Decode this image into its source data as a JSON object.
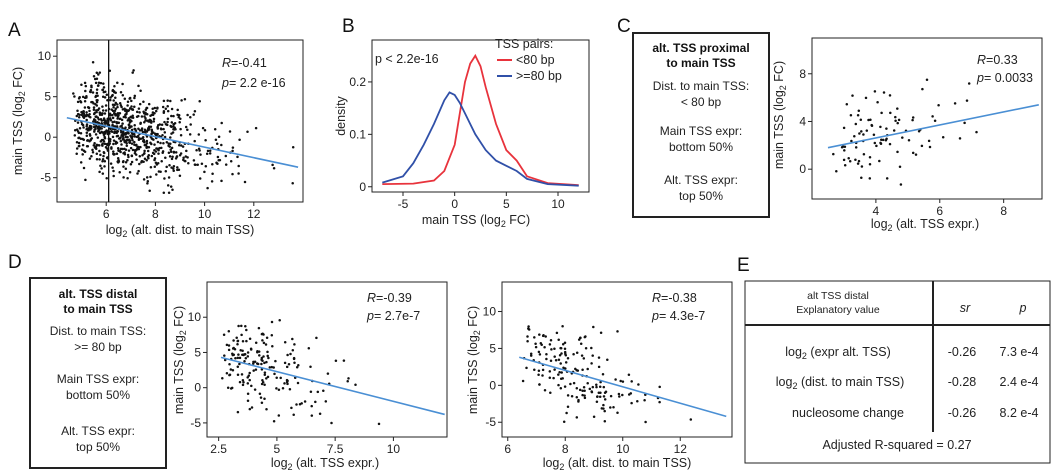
{
  "panels": {
    "a": "A",
    "b": "B",
    "c": "C",
    "d": "D",
    "e": "E"
  },
  "chart_data": [
    {
      "id": "A",
      "type": "scatter",
      "xlabel": "log2 (alt. dist. to main TSS)",
      "ylabel": "main TSS (log2 FC)",
      "xlim": [
        4,
        14
      ],
      "ylim": [
        -8,
        12
      ],
      "xticks": [
        "6",
        "8",
        "10",
        "12"
      ],
      "yticks": [
        "10",
        "5",
        "0",
        "-5"
      ],
      "stat_r": "-0.41",
      "stat_p": "2.2 e-16",
      "vline_x": 6.1,
      "trend": [
        [
          4.4,
          2.4
        ],
        [
          13.8,
          -3.7
        ]
      ],
      "point_count": 900
    },
    {
      "id": "B",
      "type": "line",
      "xlabel": "main TSS (log2 FC)",
      "ylabel": "density",
      "xlim": [
        -8,
        13
      ],
      "ylim": [
        -0.01,
        0.28
      ],
      "xticks": [
        "-5",
        "0",
        "5",
        "10"
      ],
      "yticks": [
        "0.2",
        "0.1",
        "0"
      ],
      "pvalue": "p < 2.2e-16",
      "legend_title": "TSS pairs:",
      "series": [
        {
          "name": "<80 bp",
          "color": "#e8333c",
          "x": [
            -7,
            -4,
            -2,
            -1,
            0,
            0.5,
            1,
            1.5,
            2,
            2.5,
            3,
            4,
            5,
            6,
            7,
            9,
            12
          ],
          "values": [
            0.005,
            0.006,
            0.012,
            0.03,
            0.08,
            0.14,
            0.2,
            0.235,
            0.25,
            0.23,
            0.19,
            0.12,
            0.07,
            0.05,
            0.02,
            0.007,
            0.003
          ]
        },
        {
          "name": ">=80 bp",
          "color": "#3050a8",
          "x": [
            -7,
            -5,
            -4,
            -3,
            -2,
            -1,
            -0.5,
            0,
            0.5,
            1,
            2,
            3,
            4,
            5,
            6,
            7,
            9,
            12
          ],
          "values": [
            0.008,
            0.02,
            0.045,
            0.08,
            0.12,
            0.165,
            0.18,
            0.175,
            0.16,
            0.14,
            0.1,
            0.07,
            0.05,
            0.04,
            0.03,
            0.015,
            0.005,
            0.002
          ]
        }
      ]
    },
    {
      "id": "C",
      "type": "scatter",
      "xlabel": "log2 (alt. TSS expr.)",
      "ylabel": "main TSS (log2 FC)",
      "xlim": [
        2,
        9.2
      ],
      "ylim": [
        -2.5,
        11
      ],
      "xticks": [
        "4",
        "6",
        "8"
      ],
      "yticks": [
        "8",
        "4",
        "0"
      ],
      "stat_r": "0.33",
      "stat_p": "0.0033",
      "trend": [
        [
          2.5,
          1.8
        ],
        [
          9.1,
          5.4
        ]
      ],
      "point_count": 95
    },
    {
      "id": "D1",
      "type": "scatter",
      "xlabel": "log2 (alt. TSS expr.)",
      "ylabel": "main TSS (log2 FC)",
      "xlim": [
        2,
        12.3
      ],
      "ylim": [
        -7,
        15
      ],
      "xticks": [
        "2.5",
        "5",
        "7.5",
        "10"
      ],
      "yticks": [
        "10",
        "5",
        "0",
        "-5"
      ],
      "stat_r": "-0.39",
      "stat_p": "2.7e-7",
      "trend": [
        [
          2.6,
          4.3
        ],
        [
          12.2,
          -3.8
        ]
      ],
      "point_count": 185
    },
    {
      "id": "D2",
      "type": "scatter",
      "xlabel": "log2 (alt. dist. to main TSS)",
      "ylabel": "main TSS (log2 FC)",
      "xlim": [
        5.8,
        13.8
      ],
      "ylim": [
        -7,
        14
      ],
      "xticks": [
        "6",
        "8",
        "10",
        "12"
      ],
      "yticks": [
        "10",
        "5",
        "0",
        "-5"
      ],
      "stat_r": "-0.38",
      "stat_p": "4.3e-7",
      "trend": [
        [
          6.4,
          3.8
        ],
        [
          13.6,
          -4.2
        ]
      ],
      "point_count": 175
    },
    {
      "id": "E",
      "type": "table",
      "header": [
        "alt TSS distal",
        "Explanatory value",
        "sr",
        "p"
      ],
      "rows": [
        {
          "label": "expr alt. TSS",
          "sr": "-0.26",
          "p": "7.3 e-4"
        },
        {
          "label": "dist. to main TSS",
          "sr": "-0.28",
          "p": "2.4 e-4"
        },
        {
          "label": "nucleosome change",
          "sr": "-0.26",
          "p": "8.2 e-4"
        }
      ],
      "footer": "Adjusted R-squared = 0.27"
    }
  ],
  "box_c": {
    "title1": "alt. TSS proximal",
    "title2": "to main TSS",
    "l1": "Dist. to main TSS:",
    "l2": "< 80 bp",
    "l3": "Main TSS expr:",
    "l4": "bottom 50%",
    "l5": "Alt. TSS expr:",
    "l6": "top 50%"
  },
  "box_d": {
    "title1": "alt. TSS distal",
    "title2": "to main TSS",
    "l1": "Dist. to main TSS:",
    "l2": ">= 80 bp",
    "l3": "Main TSS expr:",
    "l4": "bottom 50%",
    "l5": "Alt. TSS expr:",
    "l6": "top 50%"
  },
  "colors": {
    "trend": "#4a8fd4",
    "points": "#111111"
  }
}
